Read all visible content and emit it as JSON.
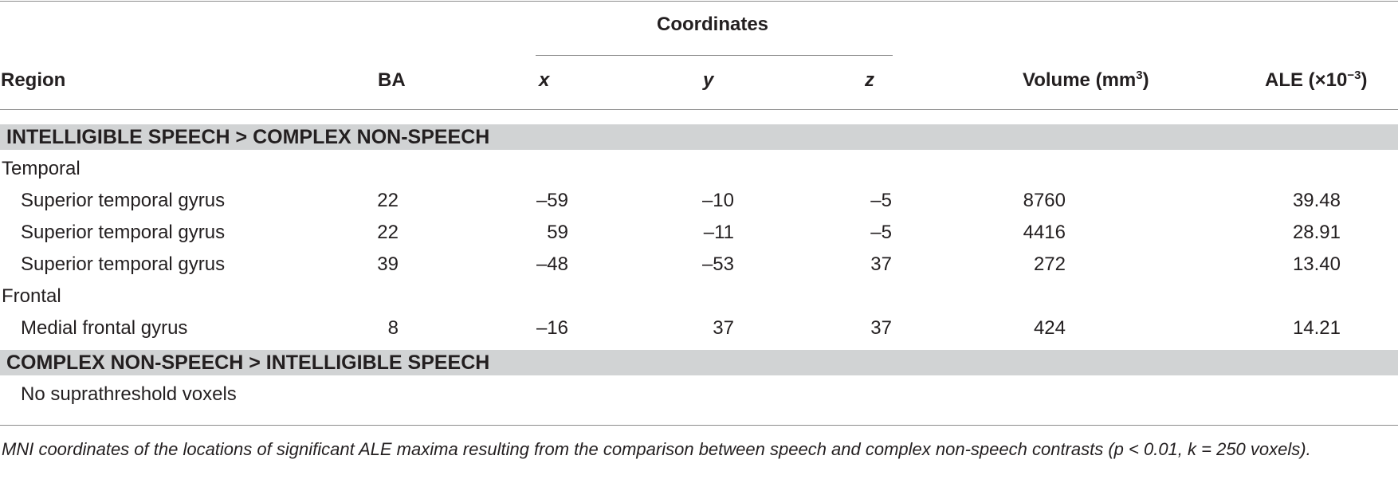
{
  "table": {
    "header": {
      "coordinates": "Coordinates",
      "region": "Region",
      "ba": "BA",
      "x": "x",
      "y": "y",
      "z": "z",
      "volume": "Volume (mm",
      "volume_sup": "3",
      "volume_close": ")",
      "ale": "ALE (×10",
      "ale_sup": "−3",
      "ale_close": ")"
    },
    "sections": [
      {
        "title": "INTELLIGIBLE SPEECH > COMPLEX NON-SPEECH",
        "groups": [
          {
            "name": "Temporal",
            "rows": [
              {
                "region": "Superior temporal gyrus",
                "ba": "22",
                "x": "–59",
                "y": "–10",
                "z": "–5",
                "volume": "8760",
                "ale": "39.48"
              },
              {
                "region": "Superior temporal gyrus",
                "ba": "22",
                "x": "59",
                "y": "–11",
                "z": "–5",
                "volume": "4416",
                "ale": "28.91"
              },
              {
                "region": "Superior temporal gyrus",
                "ba": "39",
                "x": "–48",
                "y": "–53",
                "z": "37",
                "volume": "272",
                "ale": "13.40"
              }
            ]
          },
          {
            "name": "Frontal",
            "rows": [
              {
                "region": "Medial frontal gyrus",
                "ba": "8",
                "x": "–16",
                "y": "37",
                "z": "37",
                "volume": "424",
                "ale": "14.21"
              }
            ]
          }
        ]
      },
      {
        "title": "COMPLEX NON-SPEECH > INTELLIGIBLE SPEECH",
        "note": "No suprathreshold voxels"
      }
    ],
    "caption": "MNI coordinates of the locations of significant ALE maxima resulting from the comparison between speech and complex non-speech contrasts (p < 0.01, k = 250 voxels)."
  },
  "colors": {
    "band": "#d1d3d4",
    "rule": "#8c8c8c",
    "text": "#231f20"
  }
}
